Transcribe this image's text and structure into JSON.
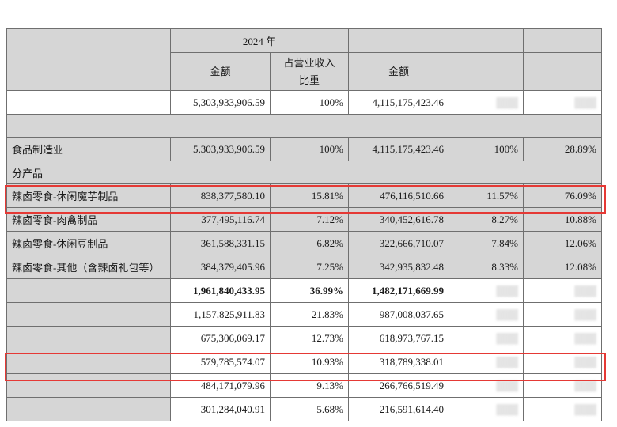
{
  "header": {
    "year": "2024 年",
    "amount": "金额",
    "ratio_line1": "占营业收入",
    "ratio_line2": "比重",
    "amount_prev": "金额"
  },
  "total": {
    "amount_2024": "5,303,933,906.59",
    "ratio_2024": "100%",
    "amount_2023": "4,115,175,423.46"
  },
  "industry": {
    "label": "食品制造业",
    "amount_2024": "5,303,933,906.59",
    "ratio_2024": "100%",
    "amount_2023": "4,115,175,423.46",
    "ratio_2023": "100%",
    "change": "28.89%"
  },
  "by_product_label": "分产品",
  "products": [
    {
      "label": "辣卤零食-休闲魔芋制品",
      "amount_2024": "838,377,580.10",
      "ratio_2024": "15.81%",
      "amount_2023": "476,116,510.66",
      "ratio_2023": "11.57%",
      "change": "76.09%"
    },
    {
      "label": "辣卤零食-肉禽制品",
      "amount_2024": "377,495,116.74",
      "ratio_2024": "7.12%",
      "amount_2023": "340,452,616.78",
      "ratio_2023": "8.27%",
      "change": "10.88%"
    },
    {
      "label": "辣卤零食-休闲豆制品",
      "amount_2024": "361,588,331.15",
      "ratio_2024": "6.82%",
      "amount_2023": "322,666,710.07",
      "ratio_2023": "7.84%",
      "change": "12.06%"
    },
    {
      "label": "辣卤零食-其他（含辣卤礼包等）",
      "amount_2024": "384,379,405.96",
      "ratio_2024": "7.25%",
      "amount_2023": "342,935,832.48",
      "ratio_2023": "8.33%",
      "change": "12.08%"
    }
  ],
  "subtotal": {
    "amount_2024": "1,961,840,433.95",
    "ratio_2024": "36.99%",
    "amount_2023": "1,482,171,669.99"
  },
  "other_rows": [
    {
      "amount_2024": "1,157,825,911.83",
      "ratio_2024": "21.83%",
      "amount_2023": "987,008,037.65"
    },
    {
      "amount_2024": "675,306,069.17",
      "ratio_2024": "12.73%",
      "amount_2023": "618,973,767.15"
    },
    {
      "amount_2024": "579,785,574.07",
      "ratio_2024": "10.93%",
      "amount_2023": "318,789,338.01"
    },
    {
      "amount_2024": "484,171,079.96",
      "ratio_2024": "9.13%",
      "amount_2023": "266,766,519.49"
    },
    {
      "amount_2024": "301,284,040.91",
      "ratio_2024": "5.68%",
      "amount_2023": "216,591,614.40"
    }
  ],
  "colors": {
    "highlight": "#e53935",
    "shade": "#d6d6d6"
  }
}
